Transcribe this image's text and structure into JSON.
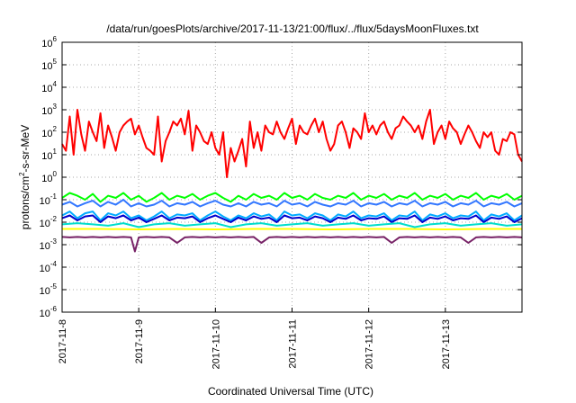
{
  "chart_data": {
    "type": "line",
    "title": "/data/run/goesPlots/archive/2017-11-13/21:00/flux/../flux/5daysMoonFluxes.txt",
    "xlabel": "Coordinated Universal Time (UTC)",
    "ylabel": "protons/cm²-s-sr-MeV",
    "ylabel_parts": {
      "pre": "protons/cm",
      "sup": "2",
      "post": "-s-sr-MeV"
    },
    "y_scale": "log",
    "ylim": [
      1e-06,
      1000000.0
    ],
    "y_ticks": [
      {
        "base": "10",
        "exp": "-6"
      },
      {
        "base": "10",
        "exp": "-5"
      },
      {
        "base": "10",
        "exp": "-4"
      },
      {
        "base": "10",
        "exp": "-3"
      },
      {
        "base": "10",
        "exp": "-2"
      },
      {
        "base": "10",
        "exp": "-1"
      },
      {
        "base": "10",
        "exp": "0"
      },
      {
        "base": "10",
        "exp": "1"
      },
      {
        "base": "10",
        "exp": "2"
      },
      {
        "base": "10",
        "exp": "3"
      },
      {
        "base": "10",
        "exp": "4"
      },
      {
        "base": "10",
        "exp": "5"
      },
      {
        "base": "10",
        "exp": "6"
      }
    ],
    "x_range": [
      "2017-11-08",
      "2017-11-14"
    ],
    "x_ticks": [
      "2017-11-8",
      "2017-11-9",
      "2017-11-10",
      "2017-11-11",
      "2017-11-12",
      "2017-11-13"
    ],
    "grid": true,
    "legend": "none",
    "series": [
      {
        "color": "#ff0000",
        "x_days": [
          0,
          0.05,
          0.1,
          0.15,
          0.2,
          0.25,
          0.3,
          0.35,
          0.4,
          0.45,
          0.5,
          0.55,
          0.6,
          0.65,
          0.7,
          0.75,
          0.8,
          0.85,
          0.9,
          0.95,
          1,
          1.05,
          1.1,
          1.15,
          1.2,
          1.25,
          1.3,
          1.35,
          1.4,
          1.45,
          1.5,
          1.55,
          1.6,
          1.65,
          1.7,
          1.75,
          1.8,
          1.85,
          1.9,
          1.95,
          2,
          2.05,
          2.1,
          2.15,
          2.2,
          2.25,
          2.3,
          2.35,
          2.4,
          2.45,
          2.5,
          2.55,
          2.6,
          2.65,
          2.7,
          2.75,
          2.8,
          2.85,
          2.9,
          2.95,
          3,
          3.05,
          3.1,
          3.15,
          3.2,
          3.25,
          3.3,
          3.35,
          3.4,
          3.45,
          3.5,
          3.55,
          3.6,
          3.65,
          3.7,
          3.75,
          3.8,
          3.85,
          3.9,
          3.95,
          4,
          4.05,
          4.1,
          4.15,
          4.2,
          4.25,
          4.3,
          4.35,
          4.4,
          4.45,
          4.5,
          4.55,
          4.6,
          4.65,
          4.7,
          4.75,
          4.8,
          4.85,
          4.9,
          4.95,
          5,
          5.05,
          5.1,
          5.15,
          5.2,
          5.25,
          5.3,
          5.35,
          5.4,
          5.45,
          5.5,
          5.55,
          5.6,
          5.65,
          5.7,
          5.75,
          5.8,
          5.85,
          5.9,
          5.95,
          6
        ],
        "values": [
          30,
          15,
          500,
          10,
          1000,
          80,
          15,
          300,
          100,
          40,
          700,
          20,
          200,
          60,
          15,
          100,
          200,
          300,
          400,
          80,
          200,
          60,
          20,
          15,
          10,
          500,
          5,
          40,
          100,
          300,
          200,
          400,
          80,
          900,
          15,
          200,
          100,
          40,
          30,
          100,
          20,
          10,
          100,
          1,
          20,
          5,
          15,
          50,
          3,
          300,
          20,
          100,
          15,
          200,
          100,
          80,
          300,
          100,
          50,
          150,
          400,
          30,
          200,
          100,
          80,
          200,
          400,
          100,
          300,
          50,
          15,
          30,
          200,
          300,
          100,
          20,
          150,
          100,
          50,
          700,
          100,
          200,
          80,
          200,
          300,
          100,
          50,
          150,
          200,
          500,
          300,
          200,
          100,
          200,
          50,
          300,
          1000,
          30,
          100,
          200,
          50,
          300,
          150,
          100,
          30,
          80,
          200,
          100,
          40,
          20,
          100,
          60,
          100,
          15,
          10,
          50,
          40,
          100,
          80,
          10,
          5
        ]
      },
      {
        "color": "#00ff00",
        "x_days": [
          0,
          0.1,
          0.2,
          0.3,
          0.4,
          0.5,
          0.6,
          0.7,
          0.8,
          0.9,
          1,
          1.1,
          1.2,
          1.3,
          1.4,
          1.5,
          1.6,
          1.7,
          1.8,
          1.9,
          2,
          2.1,
          2.2,
          2.3,
          2.4,
          2.5,
          2.6,
          2.7,
          2.8,
          2.9,
          3,
          3.1,
          3.2,
          3.3,
          3.4,
          3.5,
          3.6,
          3.7,
          3.8,
          3.9,
          4,
          4.1,
          4.2,
          4.3,
          4.4,
          4.5,
          4.6,
          4.7,
          4.8,
          4.9,
          5,
          5.1,
          5.2,
          5.3,
          5.4,
          5.5,
          5.6,
          5.7,
          5.8,
          5.9,
          6
        ],
        "values": [
          0.12,
          0.2,
          0.15,
          0.1,
          0.18,
          0.08,
          0.15,
          0.12,
          0.2,
          0.1,
          0.15,
          0.08,
          0.12,
          0.2,
          0.1,
          0.15,
          0.12,
          0.18,
          0.1,
          0.15,
          0.2,
          0.12,
          0.08,
          0.15,
          0.1,
          0.18,
          0.12,
          0.15,
          0.1,
          0.2,
          0.12,
          0.15,
          0.1,
          0.18,
          0.12,
          0.1,
          0.15,
          0.12,
          0.2,
          0.1,
          0.15,
          0.12,
          0.18,
          0.1,
          0.15,
          0.12,
          0.2,
          0.1,
          0.15,
          0.12,
          0.18,
          0.1,
          0.15,
          0.12,
          0.2,
          0.1,
          0.15,
          0.12,
          0.18,
          0.1,
          0.15
        ]
      },
      {
        "color": "#3377ff",
        "x_days": [
          0,
          0.1,
          0.2,
          0.3,
          0.4,
          0.5,
          0.6,
          0.7,
          0.8,
          0.9,
          1,
          1.1,
          1.2,
          1.3,
          1.4,
          1.5,
          1.6,
          1.7,
          1.8,
          1.9,
          2,
          2.1,
          2.2,
          2.3,
          2.4,
          2.5,
          2.6,
          2.7,
          2.8,
          2.9,
          3,
          3.1,
          3.2,
          3.3,
          3.4,
          3.5,
          3.6,
          3.7,
          3.8,
          3.9,
          4,
          4.1,
          4.2,
          4.3,
          4.4,
          4.5,
          4.6,
          4.7,
          4.8,
          4.9,
          5,
          5.1,
          5.2,
          5.3,
          5.4,
          5.5,
          5.6,
          5.7,
          5.8,
          5.9,
          6
        ],
        "values": [
          0.06,
          0.08,
          0.05,
          0.07,
          0.09,
          0.05,
          0.08,
          0.06,
          0.1,
          0.05,
          0.07,
          0.05,
          0.06,
          0.09,
          0.05,
          0.07,
          0.06,
          0.08,
          0.05,
          0.07,
          0.09,
          0.06,
          0.05,
          0.07,
          0.05,
          0.08,
          0.06,
          0.07,
          0.05,
          0.09,
          0.06,
          0.07,
          0.05,
          0.08,
          0.06,
          0.05,
          0.07,
          0.06,
          0.09,
          0.05,
          0.07,
          0.06,
          0.08,
          0.05,
          0.07,
          0.06,
          0.09,
          0.05,
          0.07,
          0.06,
          0.08,
          0.05,
          0.07,
          0.06,
          0.09,
          0.05,
          0.07,
          0.06,
          0.08,
          0.05,
          0.07
        ]
      },
      {
        "color": "#00aaff",
        "x_days": [
          0,
          0.1,
          0.2,
          0.3,
          0.4,
          0.5,
          0.6,
          0.7,
          0.8,
          0.9,
          1,
          1.1,
          1.2,
          1.3,
          1.4,
          1.5,
          1.6,
          1.7,
          1.8,
          1.9,
          2,
          2.1,
          2.2,
          2.3,
          2.4,
          2.5,
          2.6,
          2.7,
          2.8,
          2.9,
          3,
          3.1,
          3.2,
          3.3,
          3.4,
          3.5,
          3.6,
          3.7,
          3.8,
          3.9,
          4,
          4.1,
          4.2,
          4.3,
          4.4,
          4.5,
          4.6,
          4.7,
          4.8,
          4.9,
          5,
          5.1,
          5.2,
          5.3,
          5.4,
          5.5,
          5.6,
          5.7,
          5.8,
          5.9,
          6
        ],
        "values": [
          0.02,
          0.03,
          0.015,
          0.025,
          0.03,
          0.012,
          0.025,
          0.02,
          0.03,
          0.015,
          0.02,
          0.012,
          0.018,
          0.03,
          0.015,
          0.022,
          0.02,
          0.025,
          0.012,
          0.02,
          0.03,
          0.018,
          0.012,
          0.02,
          0.015,
          0.025,
          0.018,
          0.022,
          0.012,
          0.03,
          0.02,
          0.022,
          0.015,
          0.025,
          0.02,
          0.012,
          0.022,
          0.018,
          0.03,
          0.015,
          0.02,
          0.018,
          0.025,
          0.012,
          0.02,
          0.018,
          0.03,
          0.012,
          0.022,
          0.018,
          0.025,
          0.015,
          0.02,
          0.018,
          0.03,
          0.012,
          0.022,
          0.018,
          0.025,
          0.012,
          0.02
        ]
      },
      {
        "color": "#0000cc",
        "x_days": [
          0,
          0.1,
          0.2,
          0.3,
          0.4,
          0.5,
          0.6,
          0.7,
          0.8,
          0.9,
          1,
          1.1,
          1.2,
          1.3,
          1.4,
          1.5,
          1.6,
          1.7,
          1.8,
          1.9,
          2,
          2.1,
          2.2,
          2.3,
          2.4,
          2.5,
          2.6,
          2.7,
          2.8,
          2.9,
          3,
          3.1,
          3.2,
          3.3,
          3.4,
          3.5,
          3.6,
          3.7,
          3.8,
          3.9,
          4,
          4.1,
          4.2,
          4.3,
          4.4,
          4.5,
          4.6,
          4.7,
          4.8,
          4.9,
          5,
          5.1,
          5.2,
          5.3,
          5.4,
          5.5,
          5.6,
          5.7,
          5.8,
          5.9,
          6
        ],
        "values": [
          0.015,
          0.02,
          0.012,
          0.018,
          0.02,
          0.01,
          0.018,
          0.015,
          0.02,
          0.012,
          0.016,
          0.01,
          0.014,
          0.02,
          0.012,
          0.016,
          0.015,
          0.018,
          0.01,
          0.015,
          0.02,
          0.014,
          0.01,
          0.016,
          0.012,
          0.018,
          0.014,
          0.016,
          0.01,
          0.02,
          0.015,
          0.016,
          0.012,
          0.018,
          0.015,
          0.01,
          0.016,
          0.014,
          0.02,
          0.012,
          0.015,
          0.014,
          0.018,
          0.01,
          0.015,
          0.014,
          0.02,
          0.01,
          0.016,
          0.014,
          0.018,
          0.012,
          0.015,
          0.014,
          0.02,
          0.01,
          0.016,
          0.014,
          0.018,
          0.01,
          0.015
        ]
      },
      {
        "color": "#00ddcc",
        "x_days": [
          0,
          0.2,
          0.4,
          0.6,
          0.8,
          1,
          1.2,
          1.4,
          1.6,
          1.8,
          2,
          2.2,
          2.4,
          2.6,
          2.8,
          3,
          3.2,
          3.4,
          3.6,
          3.8,
          4,
          4.2,
          4.4,
          4.6,
          4.8,
          5,
          5.2,
          5.4,
          5.6,
          5.8,
          6
        ],
        "values": [
          0.008,
          0.009,
          0.008,
          0.007,
          0.009,
          0.006,
          0.008,
          0.009,
          0.007,
          0.008,
          0.009,
          0.006,
          0.008,
          0.009,
          0.007,
          0.008,
          0.009,
          0.007,
          0.008,
          0.009,
          0.007,
          0.008,
          0.009,
          0.006,
          0.008,
          0.009,
          0.007,
          0.008,
          0.009,
          0.007,
          0.008
        ]
      },
      {
        "color": "#ffff00",
        "x_days": [
          0,
          0.5,
          1,
          1.5,
          2,
          2.5,
          3,
          3.5,
          4,
          4.5,
          5,
          5.5,
          6
        ],
        "values": [
          0.005,
          0.005,
          0.0048,
          0.005,
          0.0048,
          0.005,
          0.005,
          0.0048,
          0.005,
          0.005,
          0.0048,
          0.005,
          0.005
        ]
      },
      {
        "color": "#772266",
        "x_days": [
          0,
          0.1,
          0.2,
          0.3,
          0.4,
          0.5,
          0.6,
          0.7,
          0.8,
          0.9,
          0.95,
          1,
          1.1,
          1.2,
          1.3,
          1.4,
          1.5,
          1.6,
          1.7,
          1.8,
          1.9,
          2,
          2.1,
          2.2,
          2.3,
          2.4,
          2.5,
          2.6,
          2.7,
          2.8,
          2.9,
          3,
          3.1,
          3.2,
          3.3,
          3.4,
          3.5,
          3.6,
          3.7,
          3.8,
          3.9,
          4,
          4.1,
          4.2,
          4.3,
          4.4,
          4.5,
          4.6,
          4.7,
          4.8,
          4.9,
          5,
          5.1,
          5.2,
          5.3,
          5.4,
          5.5,
          5.6,
          5.7,
          5.8,
          5.9,
          6
        ],
        "values": [
          0.0022,
          0.0021,
          0.0022,
          0.0021,
          0.0022,
          0.0021,
          0.0022,
          0.0021,
          0.0022,
          0.0021,
          0.0005,
          0.0021,
          0.0022,
          0.0021,
          0.0022,
          0.0021,
          0.0012,
          0.0021,
          0.0022,
          0.0021,
          0.0022,
          0.0021,
          0.0022,
          0.0021,
          0.0022,
          0.0021,
          0.0022,
          0.0012,
          0.0021,
          0.0022,
          0.0021,
          0.0022,
          0.0021,
          0.0022,
          0.0021,
          0.0022,
          0.0021,
          0.0022,
          0.0021,
          0.0022,
          0.0021,
          0.0022,
          0.0021,
          0.0022,
          0.0012,
          0.0021,
          0.0022,
          0.0021,
          0.0022,
          0.0021,
          0.0022,
          0.0021,
          0.0022,
          0.0021,
          0.0012,
          0.0021,
          0.0022,
          0.0021,
          0.0022,
          0.0021,
          0.0022,
          0.0021
        ]
      }
    ]
  }
}
